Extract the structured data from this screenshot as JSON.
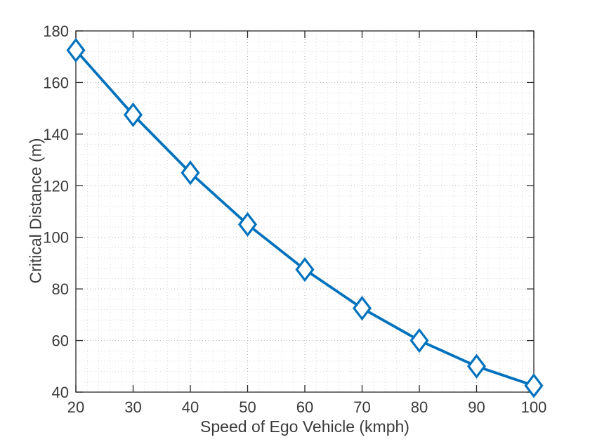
{
  "chart_data": {
    "type": "line",
    "title": "",
    "xlabel": "Speed of Ego Vehicle (kmph)",
    "ylabel": "Critical Distance (m)",
    "x": [
      20,
      30,
      40,
      50,
      60,
      70,
      80,
      90,
      100
    ],
    "y": [
      172.5,
      147.5,
      125,
      105,
      87.5,
      72.5,
      60,
      50,
      42.5
    ],
    "xlim": [
      20,
      100
    ],
    "ylim": [
      40,
      180
    ],
    "xticks": [
      20,
      30,
      40,
      50,
      60,
      70,
      80,
      90,
      100
    ],
    "yticks": [
      40,
      60,
      80,
      100,
      120,
      140,
      160,
      180
    ],
    "xtick_labels": [
      "20",
      "30",
      "40",
      "50",
      "60",
      "70",
      "80",
      "90",
      "100"
    ],
    "ytick_labels": [
      "40",
      "60",
      "80",
      "100",
      "120",
      "140",
      "160",
      "180"
    ],
    "grid": "on",
    "minor_grid": "on",
    "minor_x_step": 2,
    "minor_y_step": 4,
    "marker": "diamond",
    "legend": null,
    "colors": {
      "line": "#0072BD",
      "marker_edge": "#0072BD",
      "marker_face": "#ffffff",
      "axis": "#262626",
      "tick_text": "#3a3a3a",
      "grid_major": "#b2b2b2",
      "grid_minor": "#dcdcdc",
      "background": "#ffffff"
    }
  }
}
